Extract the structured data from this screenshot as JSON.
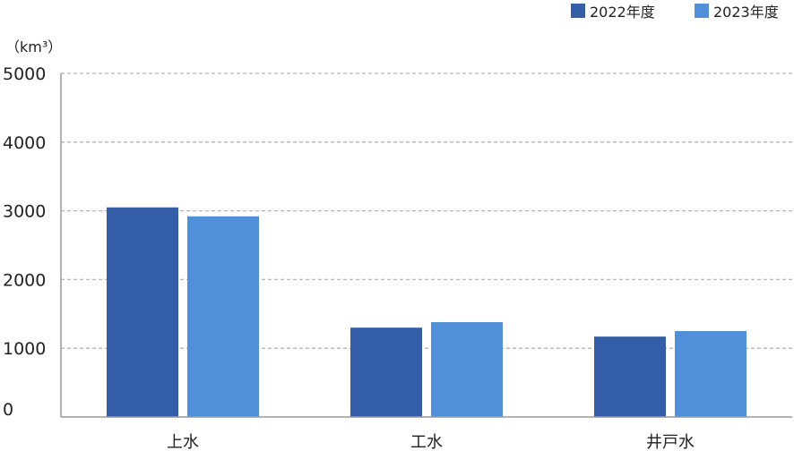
{
  "chart_data": {
    "type": "bar",
    "categories": [
      "上水",
      "工水",
      "井戸水"
    ],
    "series": [
      {
        "name": "2022年度",
        "values": [
          3050,
          1300,
          1170
        ],
        "color": "#355ea8"
      },
      {
        "name": "2023年度",
        "values": [
          2920,
          1380,
          1250
        ],
        "color": "#5090d8"
      }
    ],
    "y_unit": "（km³）",
    "yticks": [
      "0",
      "1000",
      "2000",
      "3000",
      "4000",
      "5000"
    ],
    "ylim": [
      0,
      5000
    ],
    "grid": true,
    "legend_position": "top-right"
  }
}
